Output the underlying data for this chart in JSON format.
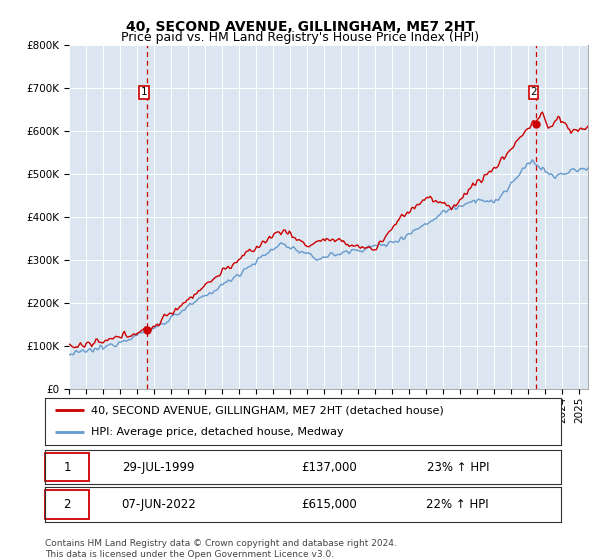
{
  "title": "40, SECOND AVENUE, GILLINGHAM, ME7 2HT",
  "subtitle": "Price paid vs. HM Land Registry's House Price Index (HPI)",
  "ylabel_ticks": [
    "£0",
    "£100K",
    "£200K",
    "£300K",
    "£400K",
    "£500K",
    "£600K",
    "£700K",
    "£800K"
  ],
  "ylim": [
    0,
    800000
  ],
  "xlim_start": 1995.0,
  "xlim_end": 2025.5,
  "background_color": "#dce6f1",
  "fig_bg_color": "#ffffff",
  "red_line_color": "#cc0000",
  "blue_line_color": "#6699cc",
  "grid_color": "#ffffff",
  "marker1_x": 1999.57,
  "marker1_y": 137000,
  "marker2_x": 2022.44,
  "marker2_y": 615000,
  "legend_line1": "40, SECOND AVENUE, GILLINGHAM, ME7 2HT (detached house)",
  "legend_line2": "HPI: Average price, detached house, Medway",
  "table_row1": [
    "1",
    "29-JUL-1999",
    "£137,000",
    "23% ↑ HPI"
  ],
  "table_row2": [
    "2",
    "07-JUN-2022",
    "£615,000",
    "22% ↑ HPI"
  ],
  "footnote": "Contains HM Land Registry data © Crown copyright and database right 2024.\nThis data is licensed under the Open Government Licence v3.0.",
  "title_fontsize": 10,
  "subtitle_fontsize": 9,
  "tick_fontsize": 7.5,
  "legend_fontsize": 8,
  "table_fontsize": 8.5,
  "footnote_fontsize": 6.5
}
